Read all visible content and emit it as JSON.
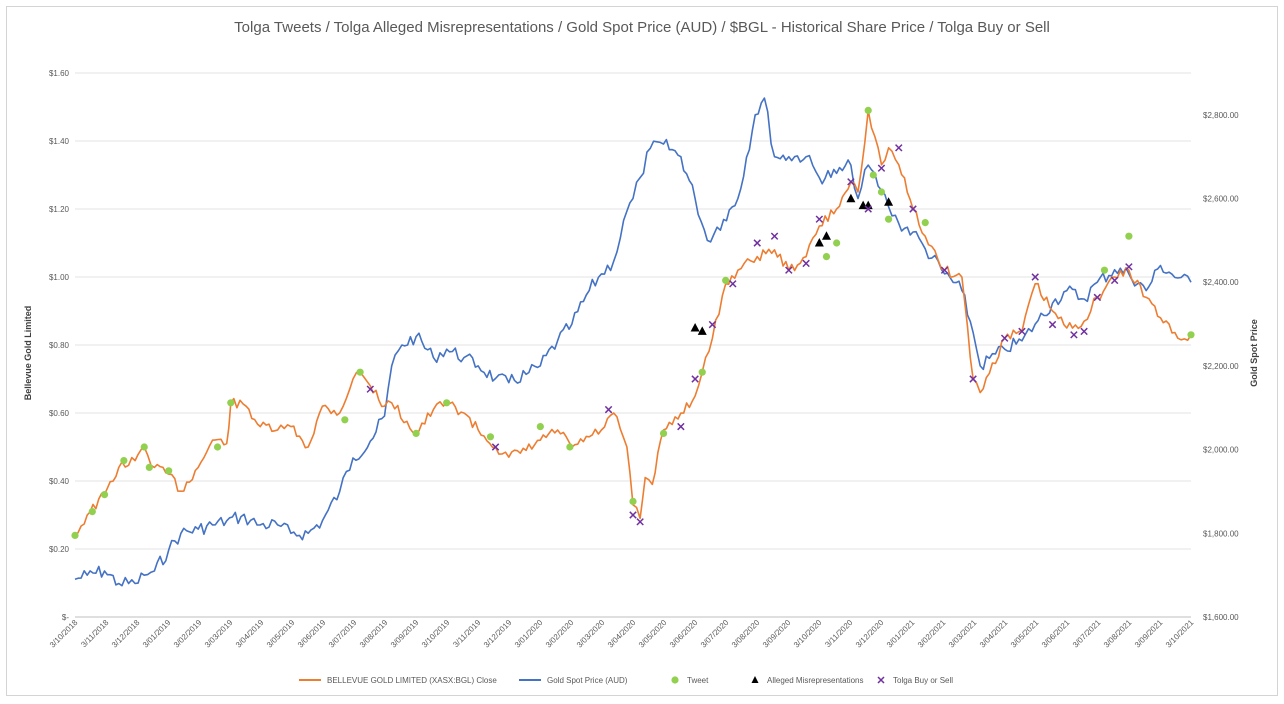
{
  "chart_data": {
    "type": "line",
    "title": "Tolga Tweets / Tolga Alleged Misrepresentations / Gold Spot Price (AUD) / $BGL - Historical Share Price / Tolga Buy or Sell",
    "ylabel": "Bellevue Gold Limited",
    "y2label": "Gold Spot Price",
    "ylim": [
      0,
      1.6
    ],
    "y2lim": [
      1600,
      2900
    ],
    "xlim": [
      "2018-10-03",
      "2021-10-03"
    ],
    "y_ticks": [
      "$-",
      "$0.20",
      "$0.40",
      "$0.60",
      "$0.80",
      "$1.00",
      "$1.20",
      "$1.40",
      "$1.60"
    ],
    "y2_ticks": [
      "$1,600.00",
      "$1,800.00",
      "$2,000.00",
      "$2,200.00",
      "$2,400.00",
      "$2,600.00",
      "$2,800.00"
    ],
    "x_ticks": [
      "3/10/2018",
      "3/11/2018",
      "3/12/2018",
      "3/01/2019",
      "3/02/2019",
      "3/03/2019",
      "3/04/2019",
      "3/05/2019",
      "3/06/2019",
      "3/07/2019",
      "3/08/2019",
      "3/09/2019",
      "3/10/2019",
      "3/11/2019",
      "3/12/2019",
      "3/01/2020",
      "3/02/2020",
      "3/03/2020",
      "3/04/2020",
      "3/05/2020",
      "3/06/2020",
      "3/07/2020",
      "3/08/2020",
      "3/09/2020",
      "3/10/2020",
      "3/11/2020",
      "3/12/2020",
      "3/01/2021",
      "3/02/2021",
      "3/03/2021",
      "3/04/2021",
      "3/05/2021",
      "3/06/2021",
      "3/07/2021",
      "3/08/2021",
      "3/09/2021",
      "3/10/2021"
    ],
    "grid": true,
    "legend_position": "bottom",
    "colors": {
      "bgl": "#ed7d31",
      "gold": "#4472c4",
      "tweet": "#92d050",
      "misrep": "#000000",
      "buysell": "#7030a0",
      "grid": "#e3e3e3",
      "axis_text": "#595959"
    },
    "series": [
      {
        "name": "BELLEVUE GOLD LIMITED (XASX:BGL) Close",
        "axis": "left",
        "style": "line",
        "points": [
          [
            "2018-10-03",
            0.24
          ],
          [
            "2018-10-15",
            0.3
          ],
          [
            "2018-11-01",
            0.36
          ],
          [
            "2018-11-15",
            0.44
          ],
          [
            "2018-12-01",
            0.46
          ],
          [
            "2018-12-10",
            0.5
          ],
          [
            "2018-12-20",
            0.44
          ],
          [
            "2019-01-03",
            0.42
          ],
          [
            "2019-01-15",
            0.37
          ],
          [
            "2019-02-01",
            0.44
          ],
          [
            "2019-02-15",
            0.52
          ],
          [
            "2019-03-01",
            0.51
          ],
          [
            "2019-03-05",
            0.63
          ],
          [
            "2019-03-20",
            0.62
          ],
          [
            "2019-04-03",
            0.56
          ],
          [
            "2019-04-20",
            0.55
          ],
          [
            "2019-05-03",
            0.56
          ],
          [
            "2019-05-20",
            0.5
          ],
          [
            "2019-06-03",
            0.62
          ],
          [
            "2019-06-20",
            0.6
          ],
          [
            "2019-07-03",
            0.7
          ],
          [
            "2019-07-10",
            0.72
          ],
          [
            "2019-07-20",
            0.68
          ],
          [
            "2019-08-03",
            0.62
          ],
          [
            "2019-08-10",
            0.63
          ],
          [
            "2019-09-03",
            0.54
          ],
          [
            "2019-09-20",
            0.61
          ],
          [
            "2019-10-03",
            0.63
          ],
          [
            "2019-10-20",
            0.6
          ],
          [
            "2019-11-03",
            0.55
          ],
          [
            "2019-11-20",
            0.5
          ],
          [
            "2019-12-03",
            0.47
          ],
          [
            "2019-12-20",
            0.49
          ],
          [
            "2020-01-03",
            0.52
          ],
          [
            "2020-01-20",
            0.55
          ],
          [
            "2020-02-03",
            0.5
          ],
          [
            "2020-02-20",
            0.53
          ],
          [
            "2020-03-03",
            0.55
          ],
          [
            "2020-03-15",
            0.6
          ],
          [
            "2020-03-28",
            0.5
          ],
          [
            "2020-04-03",
            0.33
          ],
          [
            "2020-04-10",
            0.29
          ],
          [
            "2020-04-15",
            0.41
          ],
          [
            "2020-04-22",
            0.39
          ],
          [
            "2020-05-03",
            0.55
          ],
          [
            "2020-05-20",
            0.6
          ],
          [
            "2020-06-03",
            0.65
          ],
          [
            "2020-06-10",
            0.72
          ],
          [
            "2020-06-20",
            0.82
          ],
          [
            "2020-07-03",
            0.98
          ],
          [
            "2020-07-15",
            1.02
          ],
          [
            "2020-08-03",
            1.06
          ],
          [
            "2020-08-20",
            1.08
          ],
          [
            "2020-09-03",
            1.02
          ],
          [
            "2020-09-20",
            1.06
          ],
          [
            "2020-10-03",
            1.15
          ],
          [
            "2020-10-20",
            1.2
          ],
          [
            "2020-11-03",
            1.28
          ],
          [
            "2020-11-10",
            1.25
          ],
          [
            "2020-11-20",
            1.49
          ],
          [
            "2020-12-03",
            1.33
          ],
          [
            "2020-12-10",
            1.38
          ],
          [
            "2020-12-20",
            1.33
          ],
          [
            "2021-01-03",
            1.2
          ],
          [
            "2021-01-15",
            1.12
          ],
          [
            "2021-02-03",
            1.02
          ],
          [
            "2021-02-20",
            1.0
          ],
          [
            "2021-03-03",
            0.7
          ],
          [
            "2021-03-10",
            0.66
          ],
          [
            "2021-04-03",
            0.82
          ],
          [
            "2021-04-20",
            0.84
          ],
          [
            "2021-05-03",
            0.98
          ],
          [
            "2021-05-20",
            0.9
          ],
          [
            "2021-06-03",
            0.85
          ],
          [
            "2021-06-20",
            0.87
          ],
          [
            "2021-07-03",
            0.94
          ],
          [
            "2021-07-20",
            1.0
          ],
          [
            "2021-08-03",
            1.02
          ],
          [
            "2021-08-20",
            0.94
          ],
          [
            "2021-09-03",
            0.88
          ],
          [
            "2021-09-20",
            0.82
          ],
          [
            "2021-10-03",
            0.83
          ]
        ]
      },
      {
        "name": "Gold Spot Price (AUD)",
        "axis": "right",
        "style": "line",
        "points": [
          [
            "2018-10-03",
            1690
          ],
          [
            "2018-10-15",
            1700
          ],
          [
            "2018-11-01",
            1710
          ],
          [
            "2018-11-15",
            1680
          ],
          [
            "2018-12-01",
            1680
          ],
          [
            "2018-12-10",
            1700
          ],
          [
            "2018-12-20",
            1710
          ],
          [
            "2019-01-03",
            1760
          ],
          [
            "2019-01-15",
            1800
          ],
          [
            "2019-02-01",
            1810
          ],
          [
            "2019-02-15",
            1820
          ],
          [
            "2019-03-01",
            1830
          ],
          [
            "2019-03-15",
            1840
          ],
          [
            "2019-04-03",
            1820
          ],
          [
            "2019-04-20",
            1820
          ],
          [
            "2019-05-03",
            1800
          ],
          [
            "2019-05-20",
            1800
          ],
          [
            "2019-06-03",
            1830
          ],
          [
            "2019-06-20",
            1900
          ],
          [
            "2019-07-03",
            1980
          ],
          [
            "2019-07-20",
            2020
          ],
          [
            "2019-08-03",
            2080
          ],
          [
            "2019-08-10",
            2200
          ],
          [
            "2019-08-20",
            2250
          ],
          [
            "2019-09-03",
            2270
          ],
          [
            "2019-09-20",
            2220
          ],
          [
            "2019-10-03",
            2240
          ],
          [
            "2019-10-20",
            2220
          ],
          [
            "2019-11-03",
            2200
          ],
          [
            "2019-11-20",
            2170
          ],
          [
            "2019-12-03",
            2160
          ],
          [
            "2019-12-20",
            2180
          ],
          [
            "2020-01-03",
            2200
          ],
          [
            "2020-01-20",
            2260
          ],
          [
            "2020-02-03",
            2300
          ],
          [
            "2020-02-20",
            2380
          ],
          [
            "2020-03-03",
            2420
          ],
          [
            "2020-03-15",
            2450
          ],
          [
            "2020-03-28",
            2570
          ],
          [
            "2020-04-03",
            2600
          ],
          [
            "2020-04-10",
            2650
          ],
          [
            "2020-04-20",
            2720
          ],
          [
            "2020-05-03",
            2730
          ],
          [
            "2020-05-20",
            2700
          ],
          [
            "2020-06-03",
            2600
          ],
          [
            "2020-06-15",
            2500
          ],
          [
            "2020-07-01",
            2550
          ],
          [
            "2020-07-15",
            2600
          ],
          [
            "2020-08-01",
            2800
          ],
          [
            "2020-08-10",
            2840
          ],
          [
            "2020-08-20",
            2700
          ],
          [
            "2020-09-03",
            2700
          ],
          [
            "2020-09-20",
            2700
          ],
          [
            "2020-10-03",
            2650
          ],
          [
            "2020-10-20",
            2660
          ],
          [
            "2020-11-03",
            2680
          ],
          [
            "2020-11-10",
            2600
          ],
          [
            "2020-11-20",
            2680
          ],
          [
            "2020-12-03",
            2620
          ],
          [
            "2020-12-10",
            2580
          ],
          [
            "2020-12-20",
            2540
          ],
          [
            "2021-01-03",
            2520
          ],
          [
            "2021-01-15",
            2480
          ],
          [
            "2021-02-03",
            2420
          ],
          [
            "2021-02-20",
            2380
          ],
          [
            "2021-03-03",
            2280
          ],
          [
            "2021-03-10",
            2200
          ],
          [
            "2021-04-03",
            2240
          ],
          [
            "2021-04-20",
            2260
          ],
          [
            "2021-05-03",
            2300
          ],
          [
            "2021-05-20",
            2350
          ],
          [
            "2021-06-03",
            2380
          ],
          [
            "2021-06-20",
            2360
          ],
          [
            "2021-07-03",
            2400
          ],
          [
            "2021-07-20",
            2430
          ],
          [
            "2021-08-03",
            2420
          ],
          [
            "2021-08-20",
            2380
          ],
          [
            "2021-09-03",
            2440
          ],
          [
            "2021-09-20",
            2410
          ],
          [
            "2021-10-03",
            2400
          ]
        ]
      },
      {
        "name": "Tweet",
        "axis": "left",
        "style": "marker",
        "marker": "circle",
        "points": [
          [
            "2018-10-03",
            0.24
          ],
          [
            "2018-10-20",
            0.31
          ],
          [
            "2018-11-01",
            0.36
          ],
          [
            "2018-11-20",
            0.46
          ],
          [
            "2018-12-10",
            0.5
          ],
          [
            "2018-12-15",
            0.44
          ],
          [
            "2019-01-03",
            0.43
          ],
          [
            "2019-02-20",
            0.5
          ],
          [
            "2019-03-05",
            0.63
          ],
          [
            "2019-06-25",
            0.58
          ],
          [
            "2019-07-10",
            0.72
          ],
          [
            "2019-09-03",
            0.54
          ],
          [
            "2019-10-03",
            0.63
          ],
          [
            "2019-11-15",
            0.53
          ],
          [
            "2020-01-03",
            0.56
          ],
          [
            "2020-02-01",
            0.5
          ],
          [
            "2020-04-03",
            0.34
          ],
          [
            "2020-05-03",
            0.54
          ],
          [
            "2020-06-10",
            0.72
          ],
          [
            "2020-07-03",
            0.99
          ],
          [
            "2020-10-10",
            1.06
          ],
          [
            "2020-10-20",
            1.1
          ],
          [
            "2020-11-20",
            1.49
          ],
          [
            "2020-11-25",
            1.3
          ],
          [
            "2020-12-03",
            1.25
          ],
          [
            "2020-12-10",
            1.17
          ],
          [
            "2021-01-15",
            1.16
          ],
          [
            "2021-07-10",
            1.02
          ],
          [
            "2021-08-03",
            1.12
          ],
          [
            "2021-10-03",
            0.83
          ]
        ]
      },
      {
        "name": "Alleged Misrepresentations",
        "axis": "left",
        "style": "marker",
        "marker": "triangle",
        "points": [
          [
            "2020-06-03",
            0.85
          ],
          [
            "2020-06-10",
            0.84
          ],
          [
            "2020-10-03",
            1.1
          ],
          [
            "2020-10-10",
            1.12
          ],
          [
            "2020-11-03",
            1.23
          ],
          [
            "2020-11-15",
            1.21
          ],
          [
            "2020-11-20",
            1.21
          ],
          [
            "2020-12-10",
            1.22
          ]
        ]
      },
      {
        "name": "Tolga Buy or Sell",
        "axis": "left",
        "style": "marker",
        "marker": "x",
        "points": [
          [
            "2019-07-20",
            0.67
          ],
          [
            "2019-11-20",
            0.5
          ],
          [
            "2020-03-10",
            0.61
          ],
          [
            "2020-04-03",
            0.3
          ],
          [
            "2020-04-10",
            0.28
          ],
          [
            "2020-05-20",
            0.56
          ],
          [
            "2020-06-03",
            0.7
          ],
          [
            "2020-06-20",
            0.86
          ],
          [
            "2020-07-10",
            0.98
          ],
          [
            "2020-08-03",
            1.1
          ],
          [
            "2020-08-20",
            1.12
          ],
          [
            "2020-09-03",
            1.02
          ],
          [
            "2020-09-20",
            1.04
          ],
          [
            "2020-10-03",
            1.17
          ],
          [
            "2020-11-03",
            1.28
          ],
          [
            "2020-11-20",
            1.2
          ],
          [
            "2020-12-03",
            1.32
          ],
          [
            "2020-12-20",
            1.38
          ],
          [
            "2021-01-03",
            1.2
          ],
          [
            "2021-02-03",
            1.02
          ],
          [
            "2021-03-03",
            0.7
          ],
          [
            "2021-04-03",
            0.82
          ],
          [
            "2021-04-20",
            0.84
          ],
          [
            "2021-05-03",
            1.0
          ],
          [
            "2021-05-20",
            0.86
          ],
          [
            "2021-06-10",
            0.83
          ],
          [
            "2021-06-20",
            0.84
          ],
          [
            "2021-07-03",
            0.94
          ],
          [
            "2021-07-20",
            0.99
          ],
          [
            "2021-08-03",
            1.03
          ]
        ]
      }
    ]
  }
}
